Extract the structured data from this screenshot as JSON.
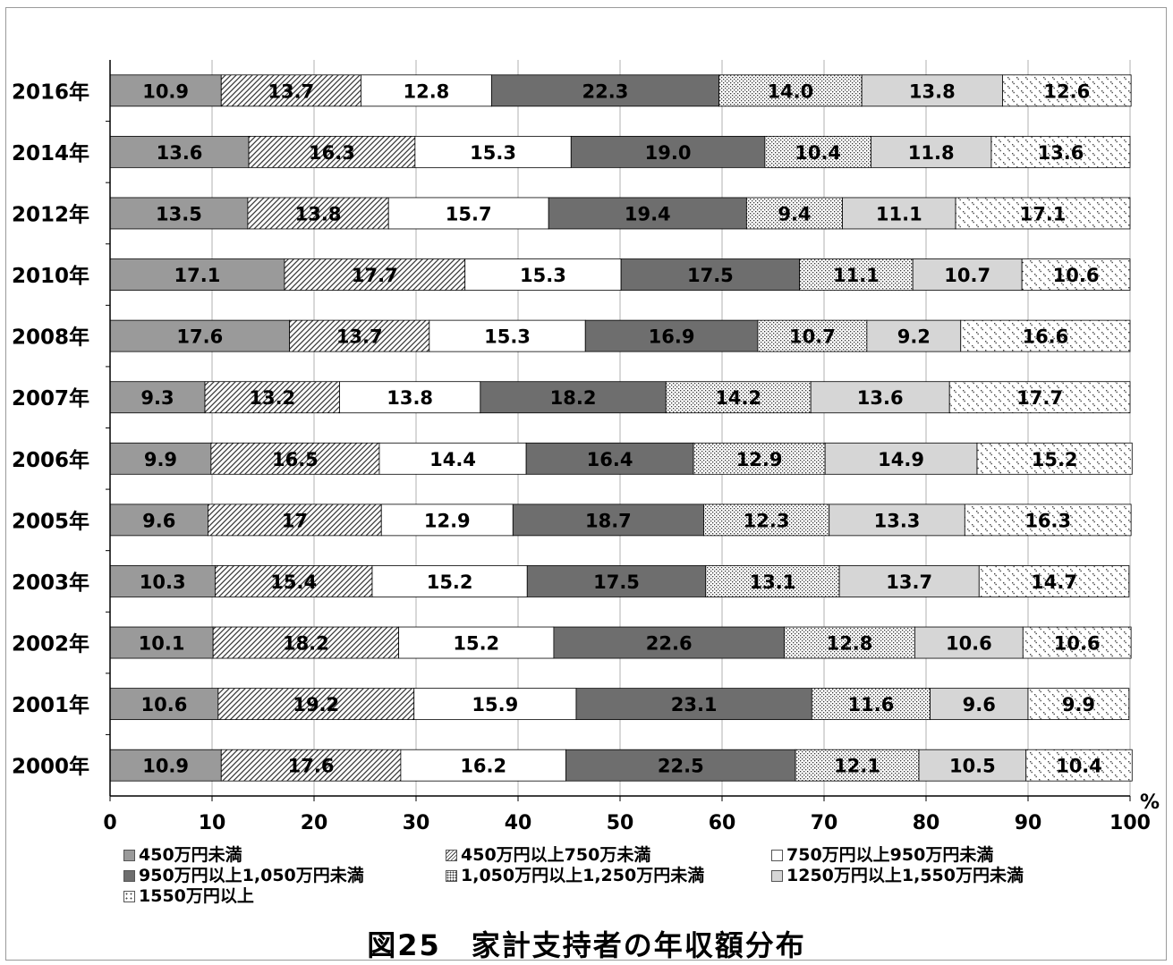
{
  "chart_data": {
    "type": "bar",
    "orientation": "horizontal",
    "stacked": true,
    "caption": "図25　家計支持者の年収額分布",
    "xunit": "%",
    "xlim": [
      0,
      100
    ],
    "xticks": [
      0,
      10,
      20,
      30,
      40,
      50,
      60,
      70,
      80,
      90,
      100
    ],
    "categories": [
      "2016年",
      "2014年",
      "2012年",
      "2010年",
      "2008年",
      "2007年",
      "2006年",
      "2005年",
      "2003年",
      "2002年",
      "2001年",
      "2000年"
    ],
    "legend_placement": "bottom",
    "series": [
      {
        "name": "450万円未満",
        "values": [
          10.9,
          13.6,
          13.5,
          17.1,
          17.6,
          9.3,
          9.9,
          9.6,
          10.3,
          10.1,
          10.6,
          10.9
        ],
        "labels": [
          "10.9",
          "13.6",
          "13.5",
          "17.1",
          "17.6",
          "9.3",
          "9.9",
          "9.6",
          "10.3",
          "10.1",
          "10.6",
          "10.9"
        ]
      },
      {
        "name": "450万円以上750万未満",
        "values": [
          13.7,
          16.3,
          13.8,
          17.7,
          13.7,
          13.2,
          16.5,
          17,
          15.4,
          18.2,
          19.2,
          17.6
        ],
        "labels": [
          "13.7",
          "16.3",
          "13.8",
          "17.7",
          "13.7",
          "13.2",
          "16.5",
          "17",
          "15.4",
          "18.2",
          "19.2",
          "17.6"
        ]
      },
      {
        "name": "750万円以上950万円未満",
        "values": [
          12.8,
          15.3,
          15.7,
          15.3,
          15.3,
          13.8,
          14.4,
          12.9,
          15.2,
          15.2,
          15.9,
          16.2
        ],
        "labels": [
          "12.8",
          "15.3",
          "15.7",
          "15.3",
          "15.3",
          "13.8",
          "14.4",
          "12.9",
          "15.2",
          "15.2",
          "15.9",
          "16.2"
        ]
      },
      {
        "name": "950万円以上1,050万円未満",
        "values": [
          22.3,
          19.0,
          19.4,
          17.5,
          16.9,
          18.2,
          16.4,
          18.7,
          17.5,
          22.6,
          23.1,
          22.5
        ],
        "labels": [
          "22.3",
          "19.0",
          "19.4",
          "17.5",
          "16.9",
          "18.2",
          "16.4",
          "18.7",
          "17.5",
          "22.6",
          "23.1",
          "22.5"
        ]
      },
      {
        "name": "1,050万円以上1,250万円未満",
        "values": [
          14.0,
          10.4,
          9.4,
          11.1,
          10.7,
          14.2,
          12.9,
          12.3,
          13.1,
          12.8,
          11.6,
          12.1
        ],
        "labels": [
          "14.0",
          "10.4",
          "9.4",
          "11.1",
          "10.7",
          "14.2",
          "12.9",
          "12.3",
          "13.1",
          "12.8",
          "11.6",
          "12.1"
        ]
      },
      {
        "name": "1250万円以上1,550万円未満",
        "values": [
          13.8,
          11.8,
          11.1,
          10.7,
          9.2,
          13.6,
          14.9,
          13.3,
          13.7,
          10.6,
          9.6,
          10.5
        ],
        "labels": [
          "13.8",
          "11.8",
          "11.1",
          "10.7",
          "9.2",
          "13.6",
          "14.9",
          "13.3",
          "13.7",
          "10.6",
          "9.6",
          "10.5"
        ]
      },
      {
        "name": "1550万円以上",
        "values": [
          12.6,
          13.6,
          17.1,
          10.6,
          16.6,
          17.7,
          15.2,
          16.3,
          14.7,
          10.6,
          9.9,
          10.4
        ],
        "labels": [
          "12.6",
          "13.6",
          "17.1",
          "10.6",
          "16.6",
          "17.7",
          "15.2",
          "16.3",
          "14.7",
          "10.6",
          "9.9",
          "10.4"
        ]
      }
    ]
  }
}
